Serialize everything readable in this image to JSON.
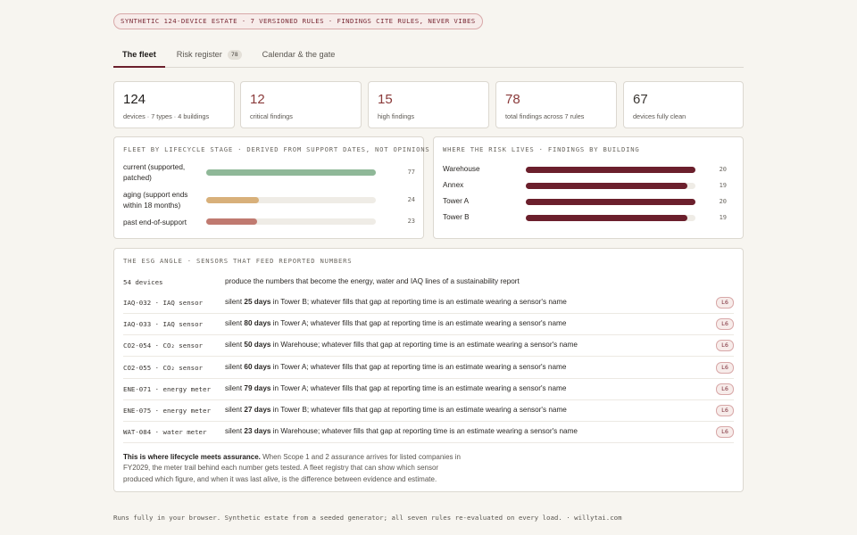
{
  "header": {
    "pill": "SYNTHETIC 124-DEVICE ESTATE · 7 VERSIONED RULES · FINDINGS CITE RULES, NEVER VIBES"
  },
  "tabs": [
    {
      "label": "The fleet",
      "active": true
    },
    {
      "label": "Risk register",
      "badge": "78"
    },
    {
      "label": "Calendar & the gate"
    }
  ],
  "stats": [
    {
      "value": "124",
      "label": "devices · 7 types · 4 buildings",
      "color": "#1f1c1a"
    },
    {
      "value": "12",
      "label": "critical findings",
      "color": "#8a3a3a"
    },
    {
      "value": "15",
      "label": "high findings",
      "color": "#8a3a3a"
    },
    {
      "value": "78",
      "label": "total findings across 7 rules",
      "color": "#8a3a3a"
    },
    {
      "value": "67",
      "label": "devices fully clean",
      "color": "#3a3632"
    }
  ],
  "lifecycle": {
    "title": "FLEET BY LIFECYCLE STAGE · DERIVED FROM SUPPORT DATES, NOT OPINIONS",
    "rows": [
      {
        "label_1": "current (supported,",
        "label_2": "patched)",
        "value": "77",
        "share": 1.0,
        "color": "#8fb898"
      },
      {
        "label_1": "aging (support ends",
        "label_2": "within 18 months)",
        "value": "24",
        "share": 0.31,
        "color": "#d8b07a"
      },
      {
        "label_1": "past end-of-support",
        "label_2": "",
        "value": "23",
        "share": 0.3,
        "color": "#c07a70"
      }
    ]
  },
  "risk_by_building": {
    "title": "WHERE THE RISK LIVES · FINDINGS BY BUILDING",
    "rows": [
      {
        "label": "Warehouse",
        "value": "20",
        "share": 1.0
      },
      {
        "label": "Annex",
        "value": "19",
        "share": 0.95
      },
      {
        "label": "Tower A",
        "value": "20",
        "share": 1.0
      },
      {
        "label": "Tower B",
        "value": "19",
        "share": 0.95
      }
    ],
    "color": "#6b1f2c"
  },
  "esg": {
    "title": "THE ESG ANGLE · SENSORS THAT FEED REPORTED NUMBERS",
    "summary_id": "54 devices",
    "summary_desc": "produce the numbers that become the energy, water and IAQ lines of a sustainability report",
    "rows": [
      {
        "id": "IAQ-032 · IAQ sensor",
        "days": "25 days",
        "location": "Tower B",
        "badge": "L6"
      },
      {
        "id": "IAQ-033 · IAQ sensor",
        "days": "80 days",
        "location": "Tower A",
        "badge": "L6"
      },
      {
        "id": "CO2-054 · CO₂ sensor",
        "days": "50 days",
        "location": "Warehouse",
        "badge": "L6"
      },
      {
        "id": "CO2-055 · CO₂ sensor",
        "days": "60 days",
        "location": "Tower A",
        "badge": "L6"
      },
      {
        "id": "ENE-071 · energy meter",
        "days": "79 days",
        "location": "Tower A",
        "badge": "L6"
      },
      {
        "id": "ENE-075 · energy meter",
        "days": "27 days",
        "location": "Tower B",
        "badge": "L6"
      },
      {
        "id": "WAT-084 · water meter",
        "days": "23 days",
        "location": "Warehouse",
        "badge": "L6"
      }
    ],
    "silent_word": "silent",
    "in_word": "in",
    "tail": "; whatever fills that gap at reporting time is an estimate wearing a sensor's name",
    "note_bold": "This is where lifecycle meets assurance.",
    "note_rest": " When Scope 1 and 2 assurance arrives for listed companies in FY2029, the meter trail behind each number gets tested. A fleet registry that can show which sensor produced which figure, and when it was last alive, is the difference between evidence and estimate."
  },
  "footer": "Runs fully in your browser. Synthetic estate from a seeded generator; all seven rules re-evaluated on every load. · willytai.com"
}
